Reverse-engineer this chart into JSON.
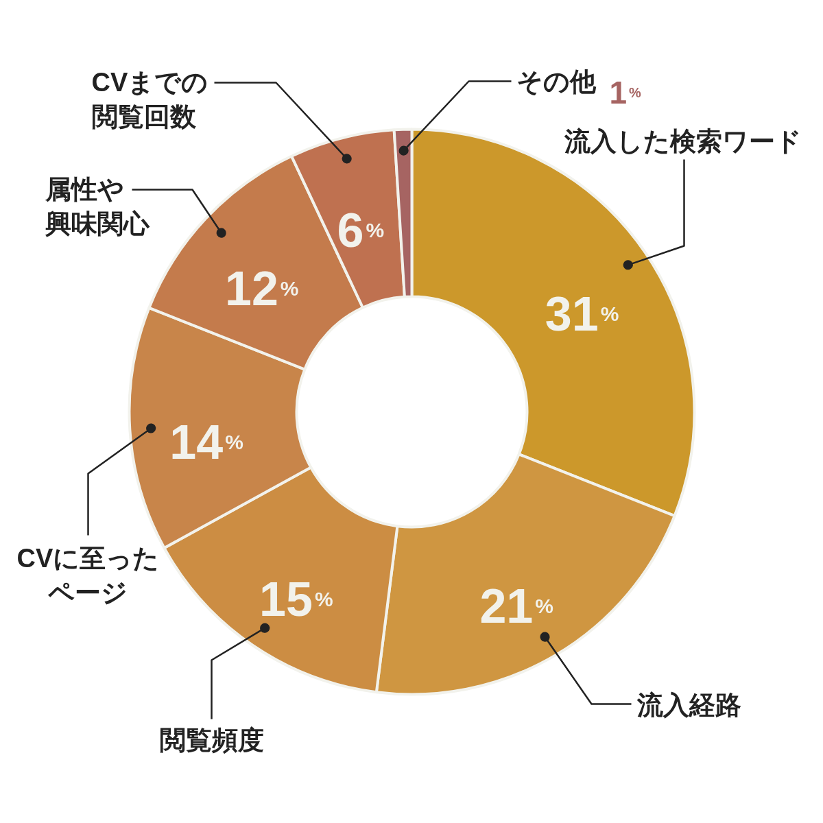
{
  "chart_data": {
    "type": "donut",
    "categories": [
      "流入した検索ワード",
      "流入経路",
      "閲覧頻度",
      "CVに至ったページ",
      "属性や興味関心",
      "CVまでの閲覧回数",
      "その他"
    ],
    "values": [
      31,
      21,
      15,
      14,
      12,
      6,
      1
    ],
    "value_labels": [
      "31%",
      "21%",
      "15%",
      "14%",
      "12%",
      "6%",
      "1%"
    ],
    "colors": [
      "#cc982b",
      "#cf9641",
      "#cc8d43",
      "#c8854a",
      "#c47b4c",
      "#bf7150",
      "#a66462"
    ]
  }
}
